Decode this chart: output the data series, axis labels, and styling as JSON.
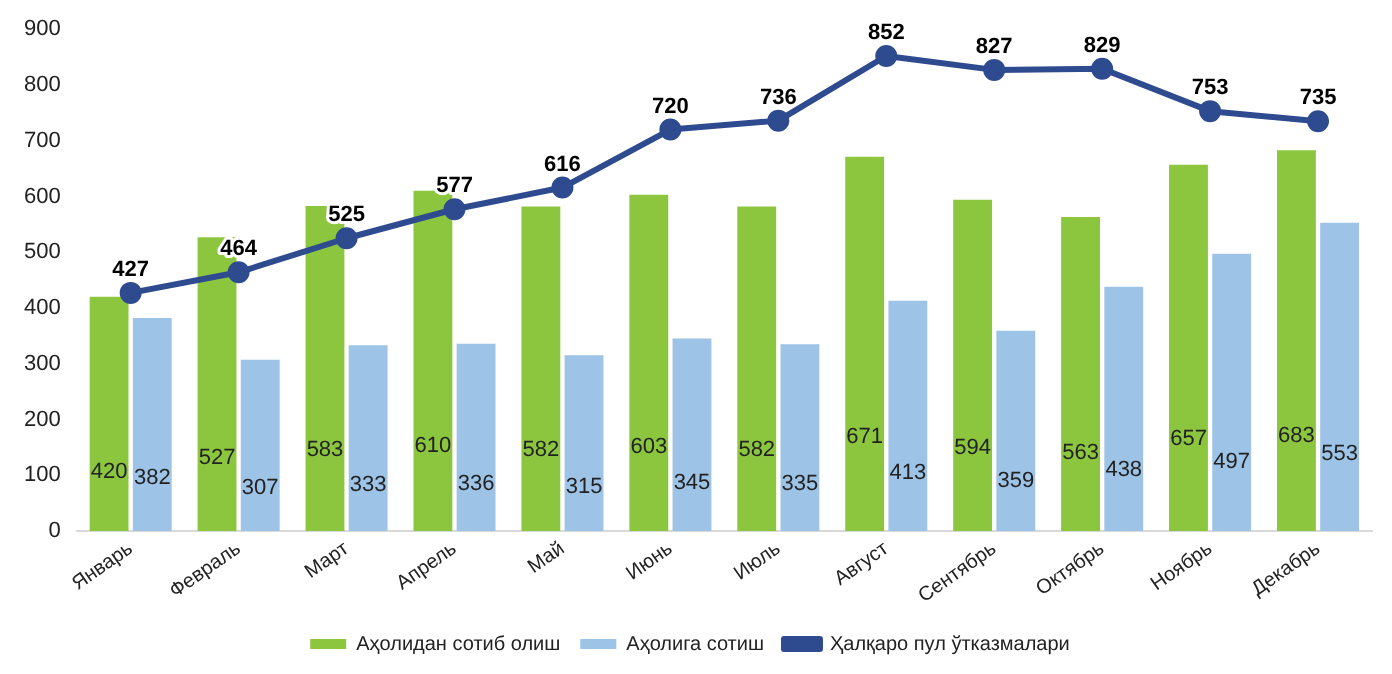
{
  "chart_data": {
    "type": "bar",
    "categories": [
      "Январь",
      "Февраль",
      "Март",
      "Апрель",
      "Май",
      "Июнь",
      "Июль",
      "Август",
      "Сентябрь",
      "Октябрь",
      "Ноябрь",
      "Декабрь"
    ],
    "series": [
      {
        "name": "Аҳолидан сотиб олиш",
        "color": "#8cc63f",
        "values": [
          420,
          527,
          583,
          610,
          582,
          603,
          582,
          671,
          594,
          563,
          657,
          683
        ]
      },
      {
        "name": "Аҳолига сотиш",
        "color": "#9dc3e6",
        "values": [
          382,
          307,
          333,
          336,
          315,
          345,
          335,
          413,
          359,
          438,
          497,
          553
        ]
      },
      {
        "name": "Ҳалқаро пул ўтказмалари",
        "type": "line",
        "color": "#2f4b8f",
        "marker": "circle",
        "values": [
          427,
          464,
          525,
          577,
          616,
          720,
          736,
          852,
          827,
          829,
          753,
          735
        ]
      }
    ],
    "ylim": [
      0,
      900
    ],
    "yticks": [
      0,
      100,
      200,
      300,
      400,
      500,
      600,
      700,
      800,
      900
    ],
    "grid": false,
    "legend": "bottom",
    "data_labels": true
  }
}
